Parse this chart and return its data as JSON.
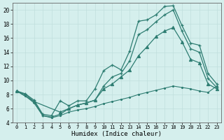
{
  "xlabel": "Humidex (Indice chaleur)",
  "bg_color": "#d5efed",
  "line_color": "#2e7d72",
  "grid_color": "#c0dedd",
  "xlim": [
    -0.5,
    23.5
  ],
  "ylim": [
    4,
    21
  ],
  "xticks": [
    0,
    1,
    2,
    3,
    4,
    5,
    6,
    7,
    8,
    9,
    10,
    11,
    12,
    13,
    14,
    15,
    16,
    17,
    18,
    19,
    20,
    21,
    22,
    23
  ],
  "yticks": [
    4,
    6,
    8,
    10,
    12,
    14,
    16,
    18,
    20
  ],
  "s1_x": [
    0,
    1,
    2,
    3,
    4,
    5,
    6,
    7,
    8,
    9,
    10,
    11,
    12,
    13,
    14,
    15,
    16,
    17,
    18,
    19,
    20,
    21,
    22,
    23
  ],
  "s1_y": [
    8.5,
    8.1,
    7.2,
    5.2,
    5.0,
    7.1,
    6.4,
    7.1,
    7.1,
    8.8,
    11.4,
    12.2,
    11.5,
    14.2,
    18.4,
    18.6,
    19.3,
    20.5,
    20.6,
    17.8,
    15.3,
    15.0,
    11.0,
    9.5
  ],
  "s2_x": [
    0,
    1,
    2,
    3,
    4,
    5,
    6,
    7,
    8,
    9,
    10,
    11,
    12,
    13,
    14,
    15,
    16,
    17,
    18,
    19,
    20,
    21,
    22,
    23
  ],
  "s2_y": [
    8.5,
    8.0,
    7.0,
    5.0,
    4.8,
    5.2,
    6.0,
    6.5,
    6.8,
    7.2,
    9.2,
    10.5,
    11.0,
    12.8,
    16.5,
    17.2,
    18.3,
    19.3,
    20.0,
    17.0,
    14.5,
    14.0,
    10.3,
    9.0
  ],
  "s3_x": [
    0,
    2,
    5,
    6,
    7,
    8,
    9,
    10,
    11,
    12,
    13,
    14,
    15,
    16,
    17,
    18,
    19,
    20,
    21,
    22,
    23
  ],
  "s3_y": [
    8.5,
    7.0,
    5.5,
    6.0,
    6.5,
    6.8,
    7.2,
    8.8,
    9.5,
    10.5,
    11.5,
    13.5,
    14.8,
    16.2,
    17.0,
    17.5,
    15.5,
    13.0,
    12.5,
    9.5,
    8.8
  ],
  "s4_x": [
    0,
    1,
    2,
    3,
    4,
    5,
    6,
    7,
    8,
    9,
    10,
    11,
    12,
    13,
    14,
    15,
    16,
    17,
    18,
    19,
    20,
    21,
    22,
    23
  ],
  "s4_y": [
    8.5,
    7.8,
    6.8,
    5.0,
    4.7,
    5.0,
    5.5,
    5.8,
    6.0,
    6.3,
    6.7,
    7.0,
    7.3,
    7.6,
    8.0,
    8.3,
    8.6,
    8.9,
    9.2,
    9.0,
    8.8,
    8.5,
    8.3,
    9.2
  ]
}
